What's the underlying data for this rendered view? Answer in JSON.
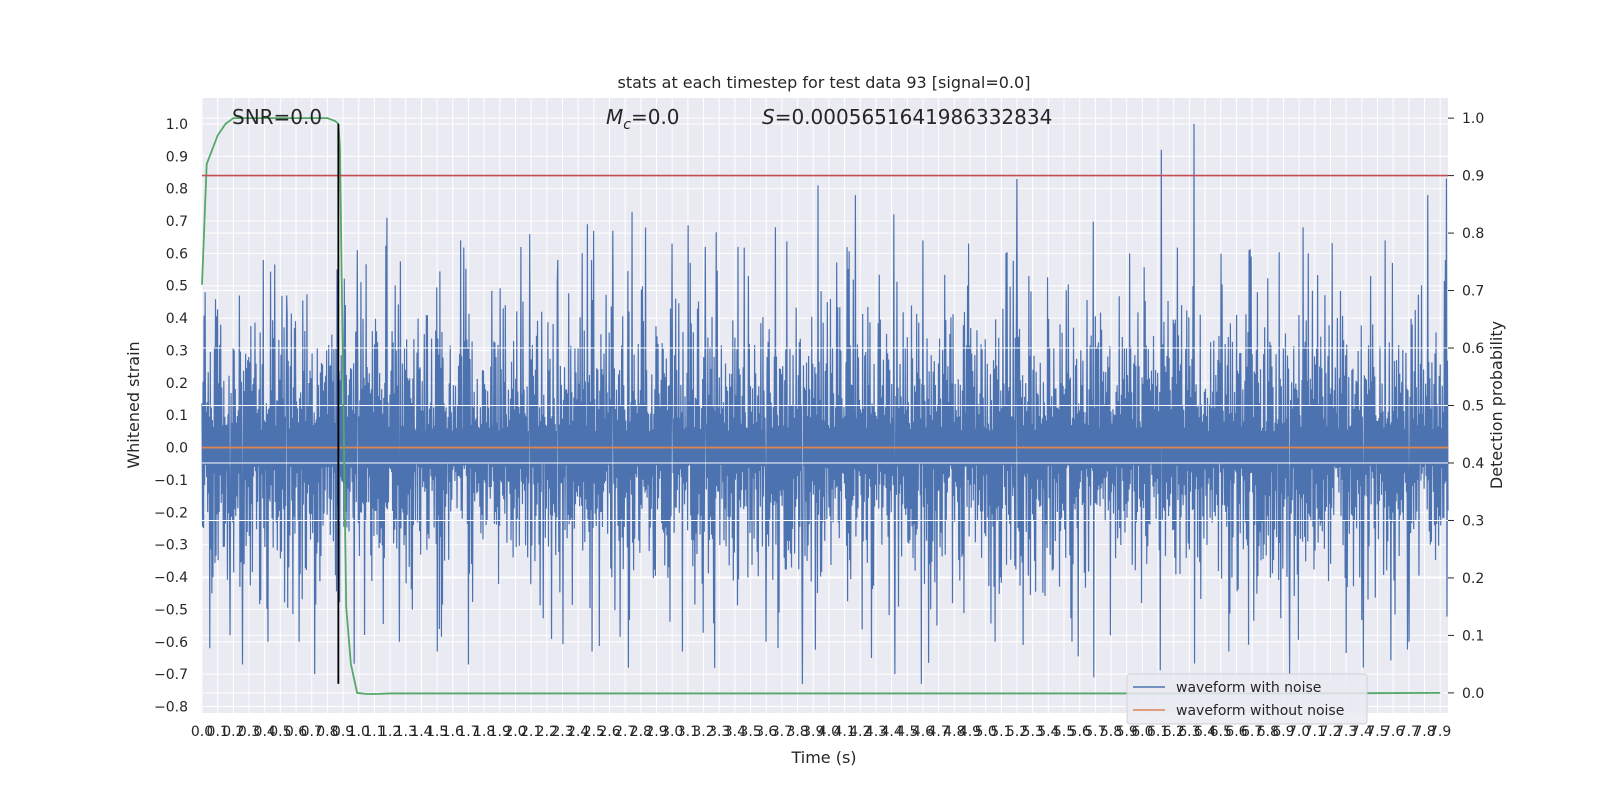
{
  "chart_data": {
    "type": "line",
    "title": "stats at each timestep for test data 93 [signal=0.0]",
    "xlabel": "Time (s)",
    "ylabel": "Whitened strain",
    "y2label": "Detection probability",
    "xlim": [
      0.0,
      7.95
    ],
    "ylim": [
      -0.82,
      1.08
    ],
    "y2lim": [
      -0.035,
      1.035
    ],
    "x_ticks": [
      0.0,
      0.1,
      0.2,
      0.3,
      0.4,
      0.5,
      0.6,
      0.7,
      0.8,
      0.9,
      1.0,
      1.1,
      1.2,
      1.3,
      1.4,
      1.5,
      1.6,
      1.7,
      1.8,
      1.9,
      2.0,
      2.1,
      2.2,
      2.3,
      2.4,
      2.5,
      2.6,
      2.7,
      2.8,
      2.9,
      3.0,
      3.1,
      3.2,
      3.3,
      3.4,
      3.5,
      3.6,
      3.7,
      3.8,
      3.9,
      4.0,
      4.1,
      4.2,
      4.3,
      4.4,
      4.5,
      4.6,
      4.7,
      4.8,
      4.9,
      5.0,
      5.1,
      5.2,
      5.3,
      5.4,
      5.5,
      5.6,
      5.7,
      5.8,
      5.9,
      6.0,
      6.1,
      6.2,
      6.3,
      6.4,
      6.5,
      6.6,
      6.7,
      6.8,
      6.9,
      7.0,
      7.1,
      7.2,
      7.3,
      7.4,
      7.5,
      7.6,
      7.7,
      7.8,
      7.9
    ],
    "x_tick_labels": [
      "0.0",
      "0.1",
      "0.2",
      "0.3",
      "0.4",
      "0.5",
      "0.6",
      "0.7",
      "0.8",
      "0.9",
      "1.0",
      "1.1",
      "1.2",
      "1.3",
      "1.4",
      "1.5",
      "1.6",
      "1.7",
      "1.8",
      "1.9",
      "2.0",
      "2.1",
      "2.2",
      "2.3",
      "2.4",
      "2.5",
      "2.6",
      "2.7",
      "2.8",
      "2.9",
      "3.0",
      "3.1",
      "3.2",
      "3.3",
      "3.4",
      "3.5",
      "3.6",
      "3.7",
      "3.8",
      "3.9",
      "4.0",
      "4.1",
      "4.2",
      "4.3",
      "4.4",
      "4.5",
      "4.6",
      "4.7",
      "4.8",
      "4.9",
      "5.0",
      "5.1",
      "5.2",
      "5.3",
      "5.4",
      "5.5",
      "5.6",
      "5.7",
      "5.8",
      "5.9",
      "6.0",
      "6.1",
      "6.2",
      "6.3",
      "6.4",
      "6.5",
      "6.6",
      "6.7",
      "6.8",
      "6.9",
      "7.0",
      "7.1",
      "7.2",
      "7.3",
      "7.4",
      "7.5",
      "7.6",
      "7.7",
      "7.8",
      "7.9"
    ],
    "y_ticks": [
      -0.8,
      -0.7,
      -0.6,
      -0.5,
      -0.4,
      -0.3,
      -0.2,
      -0.1,
      0.0,
      0.1,
      0.2,
      0.3,
      0.4,
      0.5,
      0.6,
      0.7,
      0.8,
      0.9,
      1.0
    ],
    "y_tick_labels": [
      "−0.8",
      "−0.7",
      "−0.6",
      "−0.5",
      "−0.4",
      "−0.3",
      "−0.2",
      "−0.1",
      "0.0",
      "0.1",
      "0.2",
      "0.3",
      "0.4",
      "0.5",
      "0.6",
      "0.7",
      "0.8",
      "0.9",
      "1.0"
    ],
    "y2_ticks": [
      0.0,
      0.1,
      0.2,
      0.3,
      0.4,
      0.5,
      0.6,
      0.7,
      0.8,
      0.9,
      1.0
    ],
    "y2_tick_labels": [
      "0.0",
      "0.1",
      "0.2",
      "0.3",
      "0.4",
      "0.5",
      "0.6",
      "0.7",
      "0.8",
      "0.9",
      "1.0"
    ],
    "grid": true,
    "legend_position": "bottom-right",
    "annotations": {
      "snr": "SNR=0.0",
      "mc": "M",
      "mc_sub": "c",
      "mc_value": "=0.0",
      "s": "S",
      "s_value": "=0.0005651641986332834"
    },
    "series": [
      {
        "name": "waveform with noise",
        "axis": "left",
        "color": "#4c72b0",
        "style": "noise",
        "description_values": {
          "typical_abs_max": 0.33,
          "max": 1.0,
          "min": -0.73
        },
        "spikes": [
          {
            "x": 0.02,
            "y": 0.48
          },
          {
            "x": 0.05,
            "y": -0.62
          },
          {
            "x": 0.12,
            "y": 0.38
          },
          {
            "x": 0.18,
            "y": -0.58
          },
          {
            "x": 0.24,
            "y": 0.47
          },
          {
            "x": 0.26,
            "y": -0.67
          },
          {
            "x": 0.42,
            "y": -0.6
          },
          {
            "x": 0.54,
            "y": 0.47
          },
          {
            "x": 0.62,
            "y": -0.6
          },
          {
            "x": 0.72,
            "y": -0.7
          },
          {
            "x": 0.86,
            "y": 0.55
          },
          {
            "x": 0.99,
            "y": 0.61
          },
          {
            "x": 1.18,
            "y": 0.71
          },
          {
            "x": 1.26,
            "y": -0.6
          },
          {
            "x": 1.5,
            "y": -0.63
          },
          {
            "x": 1.65,
            "y": 0.64
          },
          {
            "x": 1.7,
            "y": -0.67
          },
          {
            "x": 2.09,
            "y": 0.66
          },
          {
            "x": 2.27,
            "y": 0.58
          },
          {
            "x": 2.46,
            "y": 0.69
          },
          {
            "x": 2.49,
            "y": -0.63
          },
          {
            "x": 2.62,
            "y": 0.67
          },
          {
            "x": 2.72,
            "y": -0.68
          },
          {
            "x": 2.83,
            "y": 0.68
          },
          {
            "x": 3.0,
            "y": 0.63
          },
          {
            "x": 3.21,
            "y": 0.62
          },
          {
            "x": 3.42,
            "y": 0.62
          },
          {
            "x": 3.6,
            "y": -0.6
          },
          {
            "x": 3.83,
            "y": -0.73
          },
          {
            "x": 3.93,
            "y": 0.81
          },
          {
            "x": 4.17,
            "y": 0.78
          },
          {
            "x": 4.27,
            "y": -0.65
          },
          {
            "x": 4.42,
            "y": -0.7
          },
          {
            "x": 4.6,
            "y": 0.64
          },
          {
            "x": 4.89,
            "y": 0.63
          },
          {
            "x": 5.06,
            "y": -0.6
          },
          {
            "x": 5.2,
            "y": 0.83
          },
          {
            "x": 5.24,
            "y": -0.61
          },
          {
            "x": 5.55,
            "y": -0.6
          },
          {
            "x": 5.69,
            "y": -0.71
          },
          {
            "x": 5.92,
            "y": 0.6
          },
          {
            "x": 6.12,
            "y": 0.92
          },
          {
            "x": 6.33,
            "y": 1.0
          },
          {
            "x": 6.55,
            "y": -0.63
          },
          {
            "x": 6.68,
            "y": 0.61
          },
          {
            "x": 6.94,
            "y": -0.7
          },
          {
            "x": 7.06,
            "y": 0.6
          },
          {
            "x": 7.41,
            "y": -0.68
          },
          {
            "x": 7.55,
            "y": 0.64
          },
          {
            "x": 7.82,
            "y": 0.78
          },
          {
            "x": 7.7,
            "y": -0.6
          }
        ]
      },
      {
        "name": "waveform without noise",
        "axis": "left",
        "color": "#dd8452",
        "x": [
          0.0,
          7.95
        ],
        "y": [
          0.0,
          0.0
        ]
      },
      {
        "name": "",
        "axis": "right",
        "color": "#55a868",
        "x": [
          0.0,
          0.03,
          0.1,
          0.15,
          0.2,
          0.3,
          0.4,
          0.5,
          0.6,
          0.7,
          0.8,
          0.85,
          0.87,
          0.88,
          0.9,
          0.92,
          0.95,
          0.99,
          1.05,
          1.1,
          1.2,
          1.5,
          2.0,
          3.0,
          4.0,
          5.0,
          6.0,
          7.0,
          7.9
        ],
        "y": [
          0.71,
          0.92,
          0.97,
          0.99,
          1.0,
          1.0,
          1.0,
          1.0,
          1.0,
          1.0,
          1.0,
          0.995,
          0.99,
          0.95,
          0.55,
          0.15,
          0.05,
          0.0,
          -0.002,
          -0.002,
          -0.001,
          -0.001,
          -0.001,
          -0.001,
          -0.001,
          -0.001,
          -0.001,
          -0.001,
          0.0
        ]
      }
    ],
    "reference_lines": [
      {
        "axis": "right",
        "orientation": "horizontal",
        "value": 0.9,
        "color": "#c44e52"
      },
      {
        "axis": "left",
        "orientation": "vertical",
        "value": 0.87,
        "ymin": -0.73,
        "ymax": 1.0,
        "color": "#000000"
      }
    ],
    "legend": [
      {
        "label": "waveform with noise",
        "color": "#4c72b0"
      },
      {
        "label": "waveform without noise",
        "color": "#dd8452"
      }
    ]
  }
}
